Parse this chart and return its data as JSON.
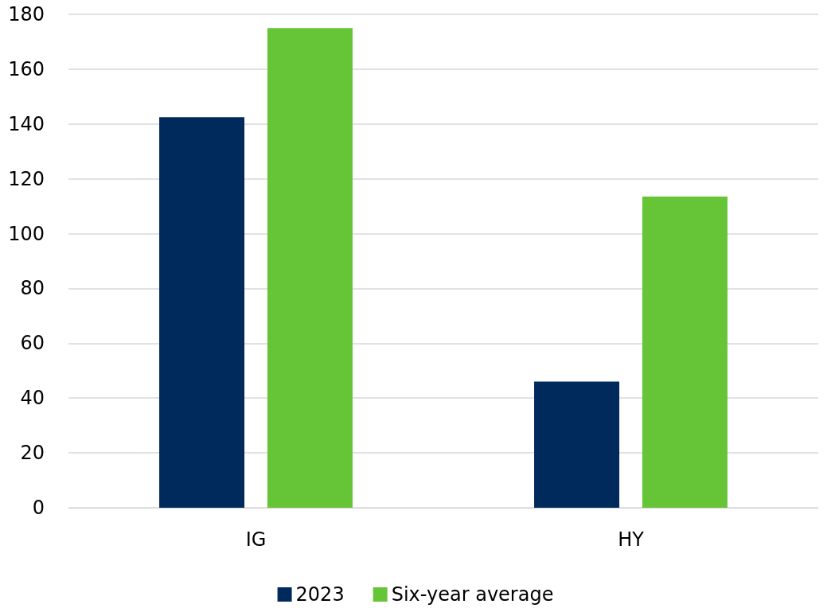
{
  "chart_data": {
    "type": "bar",
    "categories": [
      "IG",
      "HY"
    ],
    "series": [
      {
        "name": "2023",
        "color": "#002a5c",
        "values": [
          142.5,
          46
        ]
      },
      {
        "name": "Six-year average",
        "color": "#66c536",
        "values": [
          175,
          113.5
        ]
      }
    ],
    "ylim": [
      0,
      180
    ],
    "yticks": [
      0,
      20,
      40,
      60,
      80,
      100,
      120,
      140,
      160,
      180
    ],
    "grid": "y",
    "legend": "bottom"
  }
}
